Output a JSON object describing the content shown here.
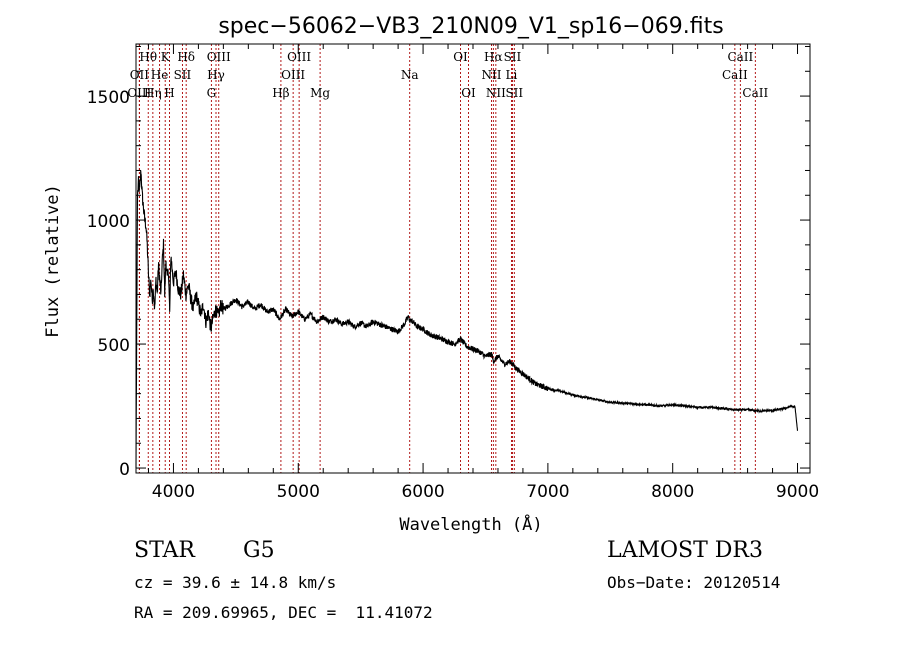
{
  "chart_data": {
    "type": "line",
    "title": "spec−56062−VB3_210N09_V1_sp16−069.fits",
    "xlabel": "Wavelength (Å)",
    "ylabel": "Flux (relative)",
    "xlim": [
      3700,
      9100
    ],
    "ylim": [
      -20,
      1710
    ],
    "xticks": [
      4000,
      5000,
      6000,
      7000,
      8000,
      9000
    ],
    "yticks": [
      0,
      500,
      1000,
      1500
    ],
    "xtick_labels": [
      "4000",
      "5000",
      "6000",
      "7000",
      "8000",
      "9000"
    ],
    "ytick_labels": [
      "0",
      "500",
      "1000",
      "1500"
    ],
    "lines": [
      {
        "label": "Hθ",
        "wave": 3798,
        "row": 0
      },
      {
        "label": "OII",
        "wave": 3727,
        "row": 1
      },
      {
        "label": "OIII",
        "wave": 3727,
        "row": 2
      },
      {
        "label": "K",
        "wave": 3934,
        "row": 0
      },
      {
        "label": "He",
        "wave": 3889,
        "row": 1
      },
      {
        "label": "Hη",
        "wave": 3835,
        "row": 2
      },
      {
        "label": "Hδ",
        "wave": 4102,
        "row": 0
      },
      {
        "label": "SII",
        "wave": 4072,
        "row": 1
      },
      {
        "label": "H",
        "wave": 3968,
        "row": 2
      },
      {
        "label": "OIII",
        "wave": 4363,
        "row": 0
      },
      {
        "label": "Hγ",
        "wave": 4341,
        "row": 1
      },
      {
        "label": "G",
        "wave": 4304,
        "row": 2
      },
      {
        "label": "OIII",
        "wave": 5007,
        "row": 0
      },
      {
        "label": "OIII",
        "wave": 4959,
        "row": 1
      },
      {
        "label": "Hβ",
        "wave": 4861,
        "row": 2
      },
      {
        "label": "Mg",
        "wave": 5175,
        "row": 2
      },
      {
        "label": "Na",
        "wave": 5893,
        "row": 1
      },
      {
        "label": "OI",
        "wave": 6300,
        "row": 0
      },
      {
        "label": "OI",
        "wave": 6364,
        "row": 2
      },
      {
        "label": "Hα",
        "wave": 6563,
        "row": 0
      },
      {
        "label": "SII",
        "wave": 6716,
        "row": 0
      },
      {
        "label": "NII",
        "wave": 6548,
        "row": 1
      },
      {
        "label": "Li",
        "wave": 6708,
        "row": 1
      },
      {
        "label": "NII",
        "wave": 6583,
        "row": 2
      },
      {
        "label": "SII",
        "wave": 6731,
        "row": 2
      },
      {
        "label": "CaII",
        "wave": 8542,
        "row": 0
      },
      {
        "label": "CaII",
        "wave": 8498,
        "row": 1
      },
      {
        "label": "CaII",
        "wave": 8662,
        "row": 2
      }
    ],
    "spectrum": {
      "x": [
        3700,
        3712,
        3720,
        3730,
        3740,
        3750,
        3760,
        3770,
        3780,
        3790,
        3800,
        3810,
        3820,
        3830,
        3840,
        3850,
        3860,
        3870,
        3880,
        3890,
        3900,
        3910,
        3920,
        3930,
        3940,
        3950,
        3960,
        3970,
        3980,
        3990,
        4000,
        4020,
        4040,
        4060,
        4080,
        4100,
        4120,
        4140,
        4160,
        4180,
        4200,
        4220,
        4240,
        4260,
        4280,
        4300,
        4320,
        4340,
        4360,
        4380,
        4400,
        4450,
        4500,
        4550,
        4600,
        4650,
        4700,
        4750,
        4800,
        4850,
        4900,
        4950,
        5000,
        5050,
        5100,
        5150,
        5200,
        5250,
        5300,
        5350,
        5400,
        5450,
        5500,
        5550,
        5600,
        5650,
        5700,
        5750,
        5800,
        5850,
        5880,
        5890,
        5900,
        5920,
        5950,
        6000,
        6050,
        6100,
        6150,
        6200,
        6250,
        6300,
        6350,
        6400,
        6450,
        6500,
        6550,
        6563,
        6600,
        6650,
        6700,
        6750,
        6800,
        6850,
        6900,
        6950,
        7000,
        7100,
        7200,
        7300,
        7400,
        7500,
        7600,
        7700,
        7800,
        7900,
        8000,
        8100,
        8200,
        8300,
        8400,
        8500,
        8600,
        8700,
        8800,
        8900,
        8950,
        8980,
        9000
      ],
      "y": [
        0,
        1100,
        1150,
        1120,
        1200,
        1100,
        1050,
        1000,
        980,
        900,
        780,
        700,
        760,
        680,
        720,
        640,
        760,
        700,
        820,
        760,
        700,
        830,
        900,
        700,
        840,
        760,
        800,
        620,
        860,
        800,
        750,
        790,
        720,
        700,
        780,
        700,
        740,
        680,
        640,
        700,
        660,
        620,
        660,
        590,
        630,
        560,
        610,
        640,
        610,
        660,
        640,
        660,
        680,
        650,
        670,
        640,
        660,
        630,
        640,
        600,
        640,
        610,
        630,
        600,
        620,
        590,
        610,
        590,
        600,
        580,
        590,
        570,
        585,
        570,
        590,
        580,
        570,
        560,
        550,
        580,
        610,
        600,
        595,
        590,
        570,
        560,
        540,
        530,
        520,
        510,
        500,
        520,
        490,
        480,
        470,
        450,
        460,
        430,
        450,
        420,
        430,
        400,
        380,
        360,
        340,
        330,
        320,
        310,
        295,
        285,
        275,
        265,
        262,
        258,
        255,
        250,
        255,
        250,
        245,
        245,
        240,
        235,
        235,
        230,
        232,
        240,
        250,
        245,
        150
      ]
    },
    "annotations": {
      "object_class": "STAR",
      "subclass": "G5",
      "survey": "LAMOST DR3",
      "cz": "cz = 39.6 ± 14.8 km/s",
      "obs_date": "Obs−Date: 20120514",
      "coords": "RA = 209.69965, DEC =  11.41072"
    },
    "colors": {
      "spectrum": "#000000",
      "line_markers": "#aa0000",
      "axes": "#000000"
    }
  }
}
